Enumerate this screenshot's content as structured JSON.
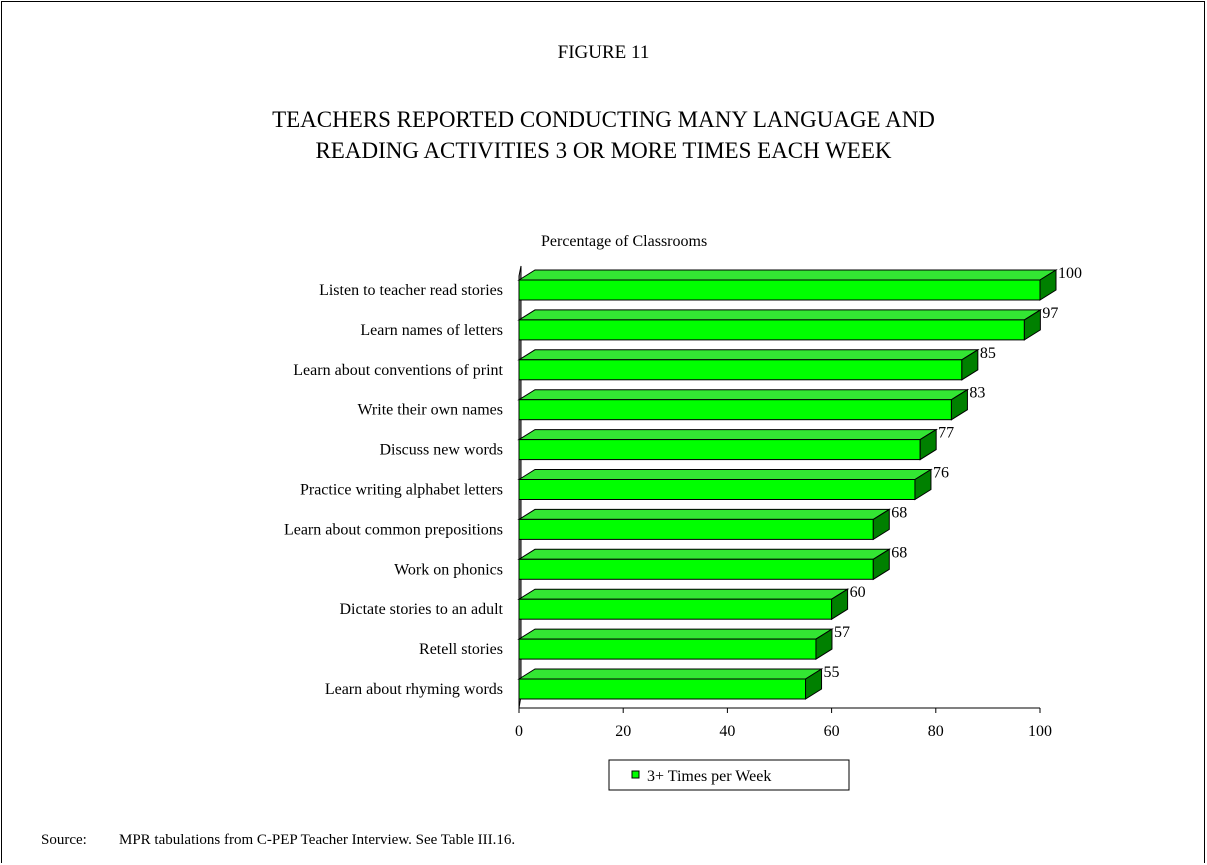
{
  "figure_label": "FIGURE 11",
  "title_line1": "TEACHERS REPORTED CONDUCTING MANY LANGUAGE AND",
  "title_line2": "READING ACTIVITIES 3 OR MORE TIMES EACH WEEK",
  "source": {
    "label": "Source:",
    "text": "MPR tabulations from C-PEP Teacher Interview.  See Table III.16."
  },
  "colors": {
    "bar_front": "#00ff00",
    "bar_top": "#33e633",
    "bar_side": "#008000",
    "wall": "#909090"
  },
  "chart_data": {
    "type": "bar",
    "orientation": "horizontal",
    "title": "TEACHERS REPORTED CONDUCTING MANY LANGUAGE AND READING ACTIVITIES 3 OR MORE TIMES EACH WEEK",
    "value_axis_label": "Percentage of Classrooms",
    "categories": [
      "Listen to teacher read stories",
      "Learn names of letters",
      "Learn about conventions of print",
      "Write their own names",
      "Discuss new words",
      "Practice writing alphabet letters",
      "Learn about common prepositions",
      "Work on phonics",
      "Dictate stories to an adult",
      "Retell stories",
      "Learn about rhyming words"
    ],
    "series": [
      {
        "name": "3+ Times per Week",
        "values": [
          100,
          97,
          85,
          83,
          77,
          76,
          68,
          68,
          60,
          57,
          55
        ]
      }
    ],
    "xlim": [
      0,
      100
    ],
    "ticks": [
      "0",
      "20",
      "40",
      "60",
      "80",
      "100"
    ],
    "legend_position": "bottom",
    "grid": false
  }
}
